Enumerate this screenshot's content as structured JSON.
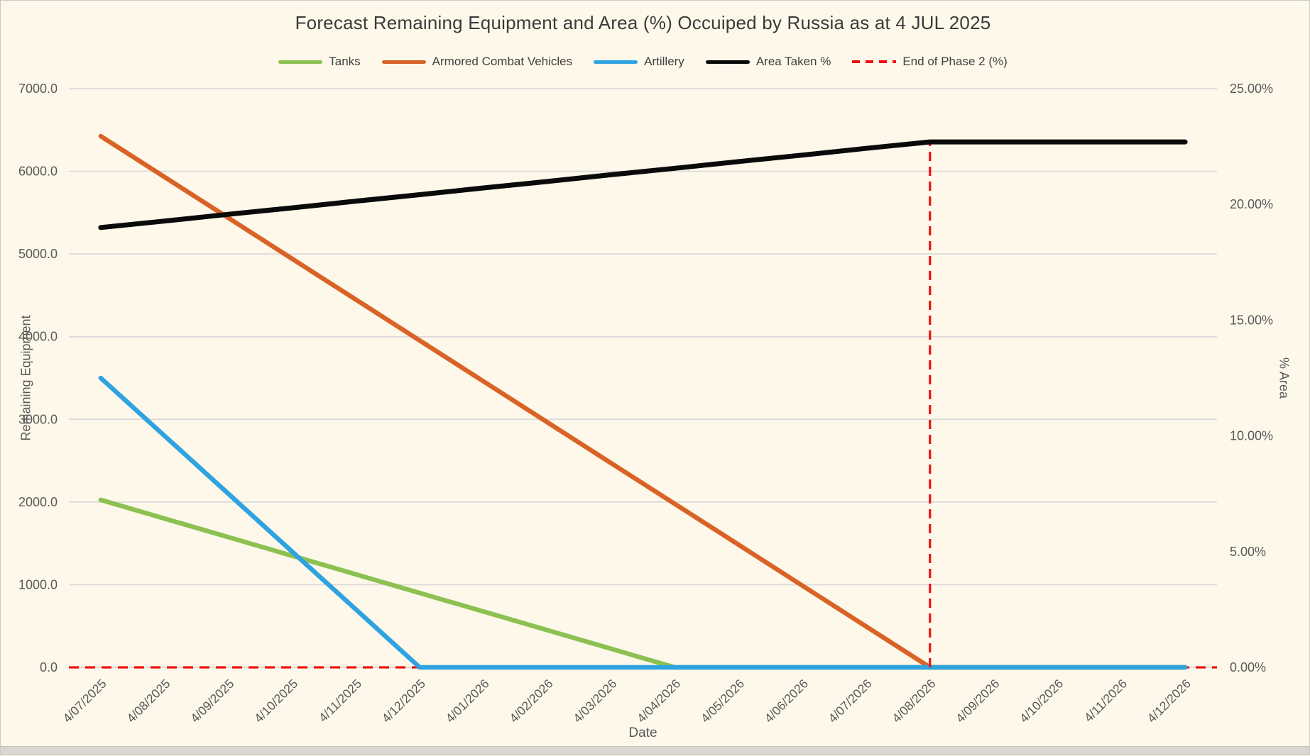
{
  "chart_data": {
    "type": "line",
    "title": "Forecast Remaining Equipment and Area (%) Occuiped by Russia as at 4 JUL 2025",
    "xlabel": "Date",
    "ylabel_left": "Remaining Equipment",
    "ylabel_right": "% Area",
    "background_color": "#FDF8EA",
    "gridline_color": "#D9D9D9",
    "axis_text_color": "#595959",
    "grid": "horizontal",
    "legend_position": "top",
    "left_axis": {
      "min": 0,
      "max": 7000,
      "tick_step": 1000,
      "tick_labels_top_to_bottom": [
        "7000.0",
        "6000.0",
        "5000.0",
        "4000.0",
        "3000.0",
        "2000.0",
        "1000.0",
        "0.0"
      ]
    },
    "right_axis": {
      "min": 0,
      "max": 25,
      "tick_step": 5,
      "tick_labels_top_to_bottom": [
        "25.00%",
        "20.00%",
        "15.00%",
        "10.00%",
        "5.00%",
        "0.00%"
      ]
    },
    "categories": [
      "4/07/2025",
      "4/08/2025",
      "4/09/2025",
      "4/10/2025",
      "4/11/2025",
      "4/12/2025",
      "4/01/2026",
      "4/02/2026",
      "4/03/2026",
      "4/04/2026",
      "4/05/2026",
      "4/06/2026",
      "4/07/2026",
      "4/08/2026",
      "4/09/2026",
      "4/10/2026",
      "4/11/2026",
      "4/12/2026"
    ],
    "series": [
      {
        "name": "Tanks",
        "axis": "left",
        "color": "#8CC152",
        "style": "solid",
        "values": [
          2025,
          1800,
          1575,
          1350,
          1125,
          900,
          675,
          450,
          225,
          0,
          0,
          0,
          0,
          0,
          0,
          0,
          0,
          0
        ]
      },
      {
        "name": "Armored Combat Vehicles",
        "axis": "left",
        "color": "#D96327",
        "style": "solid",
        "values": [
          6425,
          5931,
          5437,
          4942,
          4448,
          3954,
          3460,
          2965,
          2471,
          1977,
          1483,
          988,
          494,
          0,
          0,
          0,
          0,
          0
        ]
      },
      {
        "name": "Artillery",
        "axis": "left",
        "color": "#2FA3E0",
        "style": "solid",
        "values": [
          3500,
          2800,
          2100,
          1400,
          700,
          0,
          0,
          0,
          0,
          0,
          0,
          0,
          0,
          0,
          0,
          0,
          0,
          0
        ]
      },
      {
        "name": "Area Taken %",
        "axis": "right",
        "color": "#0A0A0A",
        "style": "solid",
        "values": [
          19.0,
          19.28,
          19.57,
          19.85,
          20.14,
          20.42,
          20.71,
          20.99,
          21.28,
          21.56,
          21.85,
          22.13,
          22.42,
          22.7,
          22.7,
          22.7,
          22.7,
          22.7
        ]
      },
      {
        "name": "End of Phase 2 (%)",
        "axis": "right",
        "color": "#EE1111",
        "style": "dashed",
        "shape": "baseline-plus-spike",
        "baseline_value": 0,
        "spike_category": "4/08/2026",
        "spike_value": 22.7
      }
    ],
    "legend": {
      "items": [
        {
          "label": "Tanks",
          "color": "#8CC152",
          "dashed": false
        },
        {
          "label": "Armored Combat Vehicles",
          "color": "#D96327",
          "dashed": false
        },
        {
          "label": "Artillery",
          "color": "#2FA3E0",
          "dashed": false
        },
        {
          "label": "Area Taken %",
          "color": "#0A0A0A",
          "dashed": false
        },
        {
          "label": "End of Phase 2 (%)",
          "color": "#EE1111",
          "dashed": true
        }
      ]
    }
  }
}
